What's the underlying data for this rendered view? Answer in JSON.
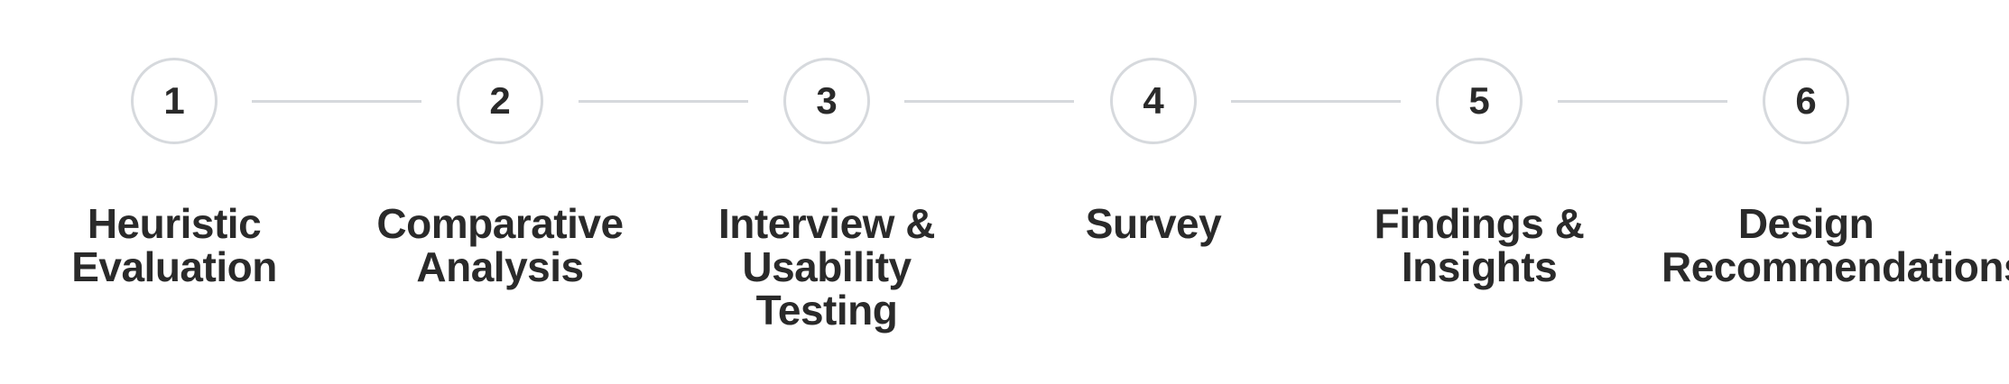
{
  "steps": [
    {
      "number": "1",
      "label_lines": [
        "Heuristic",
        "Evaluation"
      ]
    },
    {
      "number": "2",
      "label_lines": [
        "Comparative",
        "Analysis"
      ]
    },
    {
      "number": "3",
      "label_lines": [
        "Interview &",
        "Usability",
        "Testing"
      ]
    },
    {
      "number": "4",
      "label_lines": [
        "Survey"
      ]
    },
    {
      "number": "5",
      "label_lines": [
        "Findings &",
        "Insights"
      ]
    },
    {
      "number": "6",
      "label_lines": [
        "Design",
        "Recommendations"
      ]
    }
  ],
  "colors": {
    "text": "#2a2a2a",
    "circle_border": "#d6d9dd",
    "connector": "#d6d9dd",
    "background": "#ffffff"
  }
}
